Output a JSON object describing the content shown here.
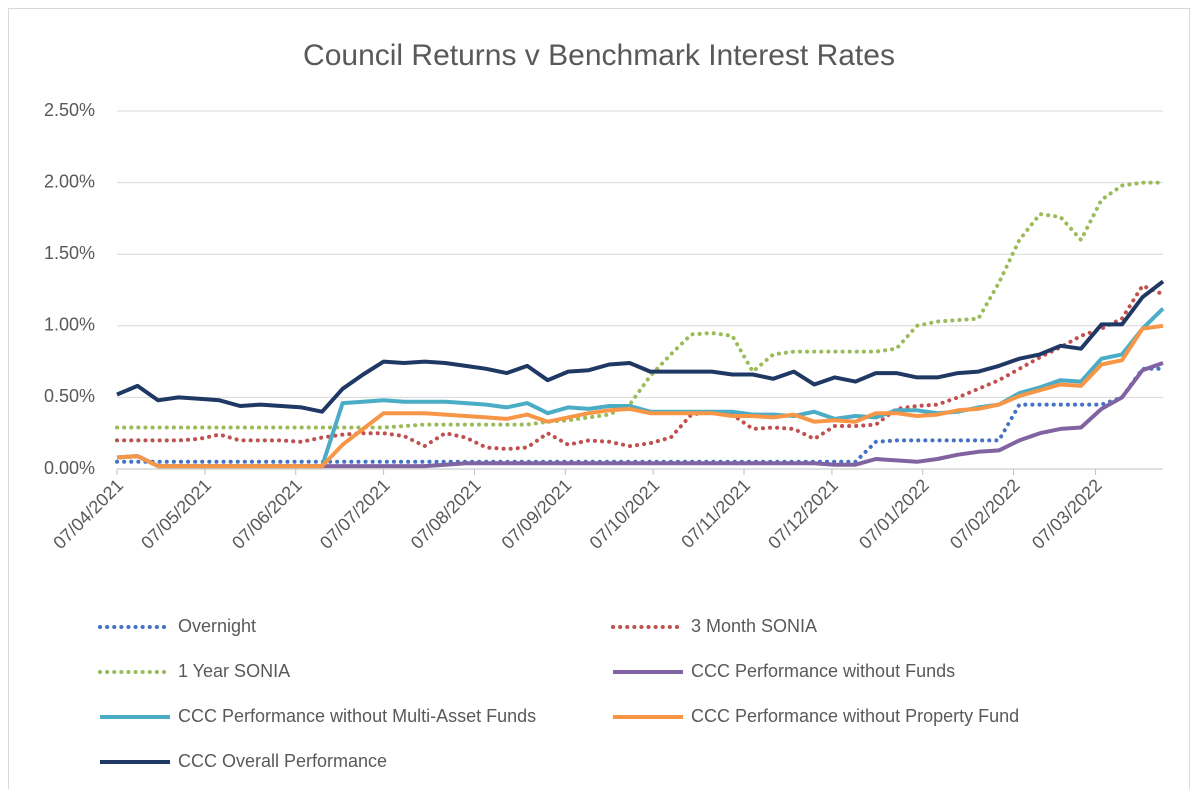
{
  "chart_data": {
    "type": "line",
    "title": "Council Returns v Benchmark Interest Rates",
    "x": [
      "07/04/2021",
      "14/04/2021",
      "21/04/2021",
      "28/04/2021",
      "05/05/2021",
      "12/05/2021",
      "19/05/2021",
      "26/05/2021",
      "02/06/2021",
      "09/06/2021",
      "16/06/2021",
      "23/06/2021",
      "30/06/2021",
      "07/07/2021",
      "14/07/2021",
      "21/07/2021",
      "28/07/2021",
      "04/08/2021",
      "11/08/2021",
      "18/08/2021",
      "25/08/2021",
      "01/09/2021",
      "08/09/2021",
      "15/09/2021",
      "22/09/2021",
      "29/09/2021",
      "06/10/2021",
      "13/10/2021",
      "20/10/2021",
      "27/10/2021",
      "03/11/2021",
      "10/11/2021",
      "17/11/2021",
      "24/11/2021",
      "01/12/2021",
      "08/12/2021",
      "15/12/2021",
      "22/12/2021",
      "29/12/2021",
      "05/01/2022",
      "12/01/2022",
      "19/01/2022",
      "26/01/2022",
      "02/02/2022",
      "09/02/2022",
      "16/02/2022",
      "23/02/2022",
      "02/03/2022",
      "09/03/2022",
      "16/03/2022",
      "23/03/2022",
      "30/03/2022"
    ],
    "xlim": [
      "07/04/2021",
      "30/03/2022"
    ],
    "xticks": [
      "07/04/2021",
      "07/05/2021",
      "07/06/2021",
      "07/07/2021",
      "07/08/2021",
      "07/09/2021",
      "07/10/2021",
      "07/11/2021",
      "07/12/2021",
      "07/01/2022",
      "07/02/2022",
      "07/03/2022"
    ],
    "ylim": [
      0,
      2.5
    ],
    "yticks": [
      {
        "value": 0,
        "label": "0.00%"
      },
      {
        "value": 0.5,
        "label": "0.50%"
      },
      {
        "value": 1,
        "label": "1.00%"
      },
      {
        "value": 1.5,
        "label": "1.50%"
      },
      {
        "value": 2,
        "label": "2.00%"
      },
      {
        "value": 2.5,
        "label": "2.50%"
      }
    ],
    "grid": true,
    "legend": "bottom",
    "series": [
      {
        "name": "Overnight",
        "color": "#4472c4",
        "style": "dotted",
        "values": [
          0.05,
          0.05,
          0.05,
          0.05,
          0.05,
          0.05,
          0.05,
          0.05,
          0.05,
          0.05,
          0.05,
          0.05,
          0.05,
          0.05,
          0.05,
          0.05,
          0.05,
          0.05,
          0.05,
          0.05,
          0.05,
          0.05,
          0.05,
          0.05,
          0.05,
          0.05,
          0.05,
          0.05,
          0.05,
          0.05,
          0.05,
          0.05,
          0.05,
          0.05,
          0.05,
          0.05,
          0.05,
          0.19,
          0.2,
          0.2,
          0.2,
          0.2,
          0.2,
          0.2,
          0.45,
          0.45,
          0.45,
          0.45,
          0.45,
          0.5,
          0.7,
          0.7
        ]
      },
      {
        "name": "3 Month SONIA",
        "color": "#c0504d",
        "style": "dotted",
        "values": [
          0.2,
          0.2,
          0.2,
          0.2,
          0.21,
          0.24,
          0.2,
          0.2,
          0.2,
          0.19,
          0.22,
          0.24,
          0.25,
          0.25,
          0.23,
          0.16,
          0.25,
          0.22,
          0.15,
          0.14,
          0.15,
          0.25,
          0.17,
          0.2,
          0.19,
          0.16,
          0.18,
          0.22,
          0.38,
          0.4,
          0.38,
          0.28,
          0.29,
          0.28,
          0.21,
          0.3,
          0.3,
          0.31,
          0.42,
          0.44,
          0.45,
          0.5,
          0.56,
          0.62,
          0.7,
          0.78,
          0.85,
          0.93,
          0.98,
          1.05,
          1.28,
          1.22
        ]
      },
      {
        "name": "1 Year SONIA",
        "color": "#9bbb59",
        "style": "dotted",
        "values": [
          0.29,
          0.29,
          0.29,
          0.29,
          0.29,
          0.29,
          0.29,
          0.29,
          0.29,
          0.29,
          0.29,
          0.29,
          0.29,
          0.29,
          0.3,
          0.31,
          0.31,
          0.31,
          0.31,
          0.31,
          0.31,
          0.33,
          0.34,
          0.36,
          0.38,
          0.45,
          0.65,
          0.8,
          0.94,
          0.95,
          0.93,
          0.68,
          0.8,
          0.82,
          0.82,
          0.82,
          0.82,
          0.82,
          0.84,
          1.0,
          1.03,
          1.04,
          1.05,
          1.3,
          1.6,
          1.78,
          1.76,
          1.6,
          1.88,
          1.98,
          2.0,
          2.0
        ]
      },
      {
        "name": "CCC Performance without Funds",
        "color": "#8064a2",
        "style": "solid",
        "values": [
          0.08,
          0.09,
          0.02,
          0.02,
          0.02,
          0.02,
          0.02,
          0.02,
          0.02,
          0.02,
          0.02,
          0.02,
          0.02,
          0.02,
          0.02,
          0.02,
          0.03,
          0.04,
          0.04,
          0.04,
          0.04,
          0.04,
          0.04,
          0.04,
          0.04,
          0.04,
          0.04,
          0.04,
          0.04,
          0.04,
          0.04,
          0.04,
          0.04,
          0.04,
          0.04,
          0.03,
          0.03,
          0.07,
          0.06,
          0.05,
          0.07,
          0.1,
          0.12,
          0.13,
          0.2,
          0.25,
          0.28,
          0.29,
          0.42,
          0.5,
          0.69,
          0.74
        ]
      },
      {
        "name": "CCC Performance without Multi-Asset Funds",
        "color": "#4bacc6",
        "style": "solid",
        "values": [
          0.08,
          0.09,
          0.02,
          0.02,
          0.02,
          0.02,
          0.02,
          0.02,
          0.02,
          0.02,
          0.02,
          0.46,
          0.47,
          0.48,
          0.47,
          0.47,
          0.47,
          0.46,
          0.45,
          0.43,
          0.46,
          0.39,
          0.43,
          0.42,
          0.44,
          0.44,
          0.4,
          0.4,
          0.4,
          0.4,
          0.4,
          0.38,
          0.38,
          0.37,
          0.4,
          0.35,
          0.37,
          0.36,
          0.41,
          0.41,
          0.39,
          0.4,
          0.43,
          0.45,
          0.53,
          0.57,
          0.62,
          0.61,
          0.77,
          0.8,
          0.98,
          1.12
        ]
      },
      {
        "name": "CCC Performance without Property Fund",
        "color": "#f79646",
        "style": "solid",
        "values": [
          0.08,
          0.09,
          0.02,
          0.02,
          0.02,
          0.02,
          0.02,
          0.02,
          0.02,
          0.02,
          0.02,
          0.17,
          0.28,
          0.39,
          0.39,
          0.39,
          0.38,
          0.37,
          0.36,
          0.35,
          0.38,
          0.33,
          0.36,
          0.39,
          0.41,
          0.42,
          0.39,
          0.39,
          0.39,
          0.39,
          0.37,
          0.37,
          0.36,
          0.38,
          0.33,
          0.34,
          0.33,
          0.39,
          0.39,
          0.37,
          0.38,
          0.41,
          0.42,
          0.45,
          0.51,
          0.55,
          0.59,
          0.58,
          0.73,
          0.76,
          0.98,
          1.0
        ]
      },
      {
        "name": "CCC Overall Performance",
        "color": "#1f3864",
        "style": "solid",
        "values": [
          0.52,
          0.58,
          0.48,
          0.5,
          0.49,
          0.48,
          0.44,
          0.45,
          0.44,
          0.43,
          0.4,
          0.56,
          0.66,
          0.75,
          0.74,
          0.75,
          0.74,
          0.72,
          0.7,
          0.67,
          0.72,
          0.62,
          0.68,
          0.69,
          0.73,
          0.74,
          0.68,
          0.68,
          0.68,
          0.68,
          0.66,
          0.66,
          0.63,
          0.68,
          0.59,
          0.64,
          0.61,
          0.67,
          0.67,
          0.64,
          0.64,
          0.67,
          0.68,
          0.72,
          0.77,
          0.8,
          0.86,
          0.84,
          1.01,
          1.01,
          1.2,
          1.31
        ]
      }
    ]
  }
}
